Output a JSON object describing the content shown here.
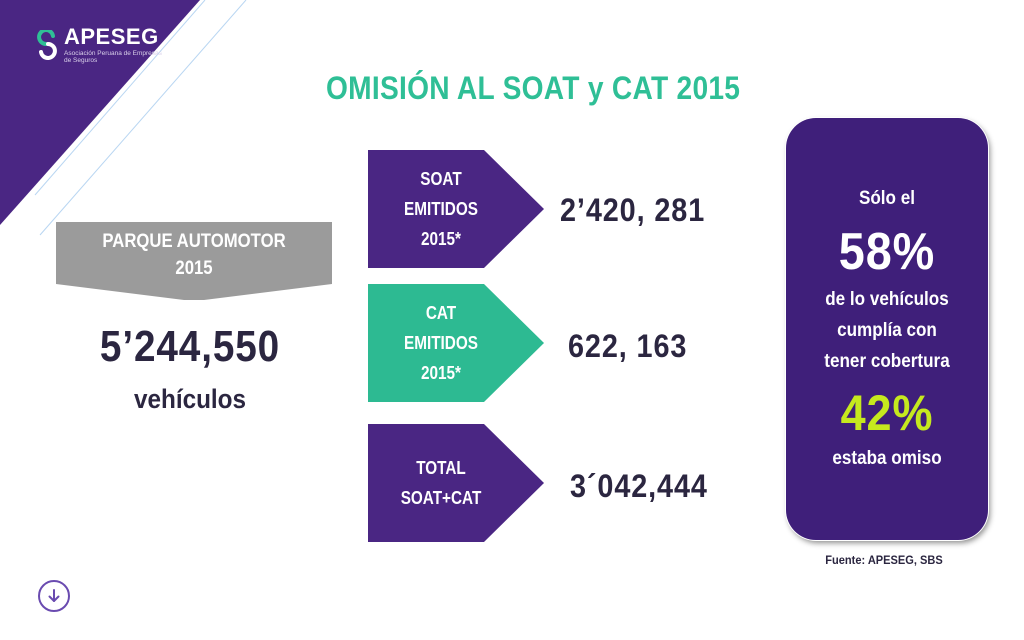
{
  "brand": {
    "name": "APESEG",
    "tagline": "Asociación Peruana de Empresas de Seguros"
  },
  "title": "OMISIÓN AL SOAT y CAT 2015",
  "parque": {
    "label_line1": "PARQUE AUTOMOTOR",
    "label_line2": "2015",
    "value": "5’244,550",
    "unit": "vehículos"
  },
  "items": [
    {
      "line1": "SOAT",
      "line2": "EMITIDOS",
      "line3": "2015*",
      "value": "2’420, 281",
      "color": "#4a2683"
    },
    {
      "line1": "CAT",
      "line2": "EMITIDOS",
      "line3": "2015*",
      "value": "622, 163",
      "color": "#2dba92"
    },
    {
      "line1": "TOTAL",
      "line2": "SOAT+CAT",
      "value": "3´042,444",
      "color": "#4a2683"
    }
  ],
  "side": {
    "intro": "Sólo el",
    "pct_covered": "58%",
    "desc_line1": "de lo vehículos",
    "desc_line2": "cumplía con",
    "desc_line3": "tener cobertura",
    "pct_omitted": "42%",
    "foot": "estaba omiso"
  },
  "source": "Fuente: APESEG, SBS",
  "icons": {
    "logo": "apeseg-logo-icon",
    "nav": "arrow-down-circle-icon"
  },
  "colors": {
    "purple": "#4a2683",
    "teal": "#2fbf96",
    "gray": "#9b9b9b",
    "lime": "#c6e91e"
  }
}
